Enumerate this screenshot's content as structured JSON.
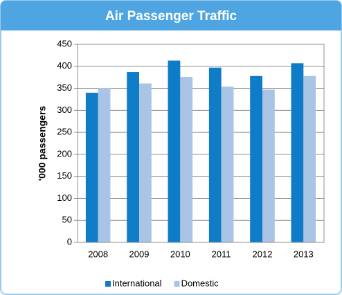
{
  "chart_data": {
    "type": "bar",
    "title": "Air Passenger Traffic",
    "ylabel": "'000 passengers",
    "categories": [
      "2008",
      "2009",
      "2010",
      "2011",
      "2012",
      "2013"
    ],
    "series": [
      {
        "name": "International",
        "color": "#0f7cc8",
        "values": [
          340,
          387,
          413,
          397,
          378,
          407
        ]
      },
      {
        "name": "Domestic",
        "color": "#a9c4e4",
        "values": [
          351,
          361,
          376,
          354,
          347,
          378
        ]
      }
    ],
    "ylim": [
      0,
      450
    ],
    "yticks": [
      0,
      50,
      100,
      150,
      200,
      250,
      300,
      350,
      400,
      450
    ],
    "grid": true,
    "legend": "bottom"
  }
}
